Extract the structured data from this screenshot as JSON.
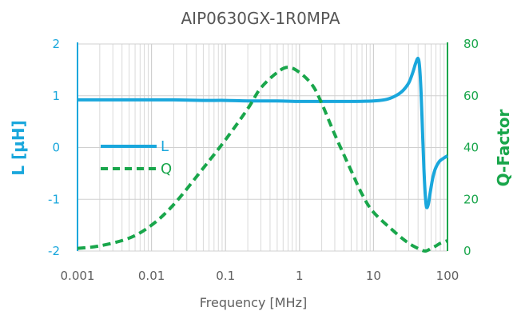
{
  "chart_data": {
    "type": "line",
    "title": "AIP0630GX-1R0MPA",
    "xlabel": "Frequency [MHz]",
    "ylabel_left": "L [µH]",
    "ylabel_right": "Q-Factor",
    "x_scale": "log",
    "xlim": [
      0.001,
      100
    ],
    "ylim_left": [
      -2,
      2
    ],
    "ylim_right": [
      0,
      80
    ],
    "x_ticks": [
      "0.001",
      "0.01",
      "0.1",
      "1",
      "10",
      "100"
    ],
    "y_left_ticks": [
      "2",
      "1",
      "0",
      "-1",
      "-2"
    ],
    "y_right_ticks": [
      "80",
      "60",
      "40",
      "20",
      "0"
    ],
    "grid": true,
    "legend_position": "left",
    "colors": {
      "L": "#1aa7dc",
      "Q": "#19a64b",
      "grid": "#d0d0d0",
      "title": "#555555"
    },
    "series": [
      {
        "name": "L",
        "axis": "left",
        "style": "solid",
        "x": [
          0.001,
          0.002,
          0.005,
          0.01,
          0.02,
          0.05,
          0.1,
          0.2,
          0.5,
          1,
          2,
          5,
          10,
          15,
          20,
          25,
          30,
          34,
          37,
          40,
          42,
          44,
          46,
          48,
          50,
          52,
          55,
          58,
          62,
          66,
          70,
          75,
          80,
          90,
          100
        ],
        "values": [
          0.92,
          0.92,
          0.92,
          0.92,
          0.92,
          0.91,
          0.91,
          0.9,
          0.9,
          0.89,
          0.89,
          0.89,
          0.9,
          0.93,
          1.0,
          1.1,
          1.25,
          1.45,
          1.62,
          1.72,
          1.55,
          1.05,
          0.3,
          -0.4,
          -0.9,
          -1.15,
          -1.1,
          -0.9,
          -0.65,
          -0.48,
          -0.38,
          -0.3,
          -0.25,
          -0.2,
          -0.16
        ]
      },
      {
        "name": "Q",
        "axis": "right",
        "style": "dashed",
        "x": [
          0.001,
          0.002,
          0.005,
          0.01,
          0.02,
          0.05,
          0.1,
          0.2,
          0.3,
          0.5,
          0.7,
          1,
          1.5,
          2,
          3,
          5,
          7,
          10,
          20,
          30,
          40,
          50,
          60,
          70,
          80,
          100
        ],
        "values": [
          1,
          2,
          5,
          10,
          18,
          32,
          43,
          55,
          63,
          69,
          71,
          69,
          64,
          57,
          45,
          31,
          22,
          15,
          7,
          3,
          1,
          0,
          1,
          2,
          3,
          4
        ]
      }
    ]
  }
}
